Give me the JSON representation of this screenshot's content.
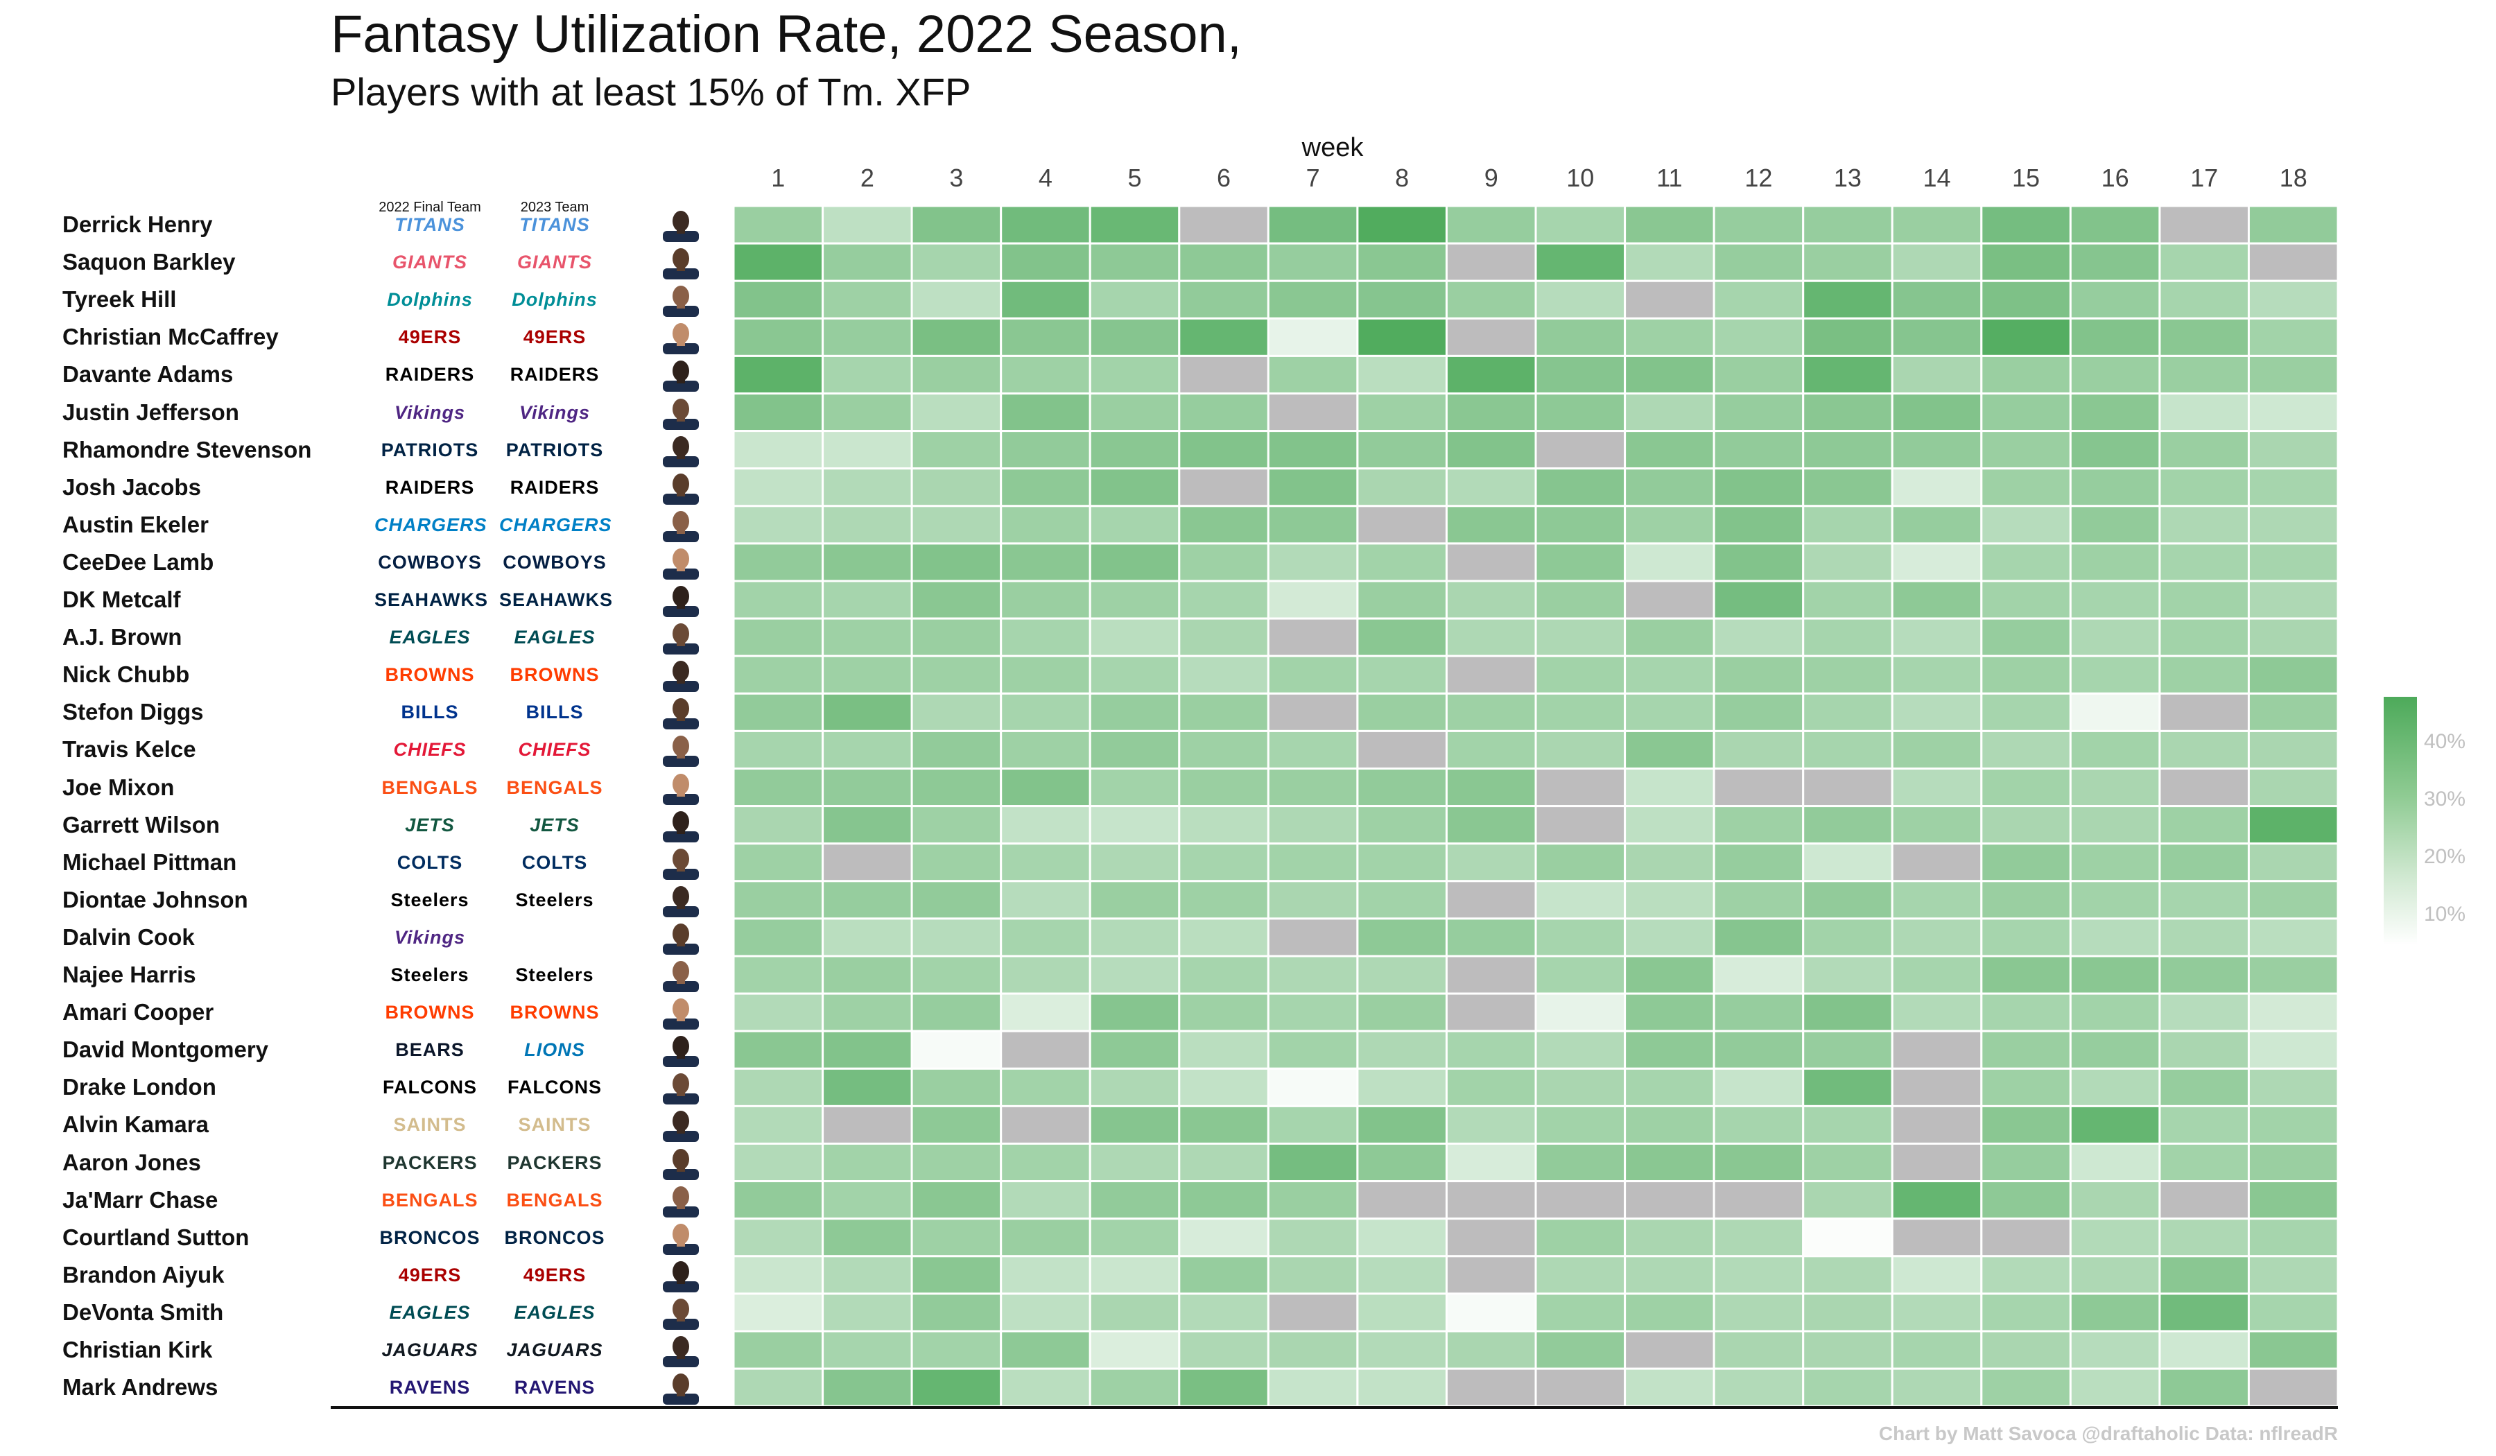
{
  "title": "Fantasy Utilization Rate,  2022 Season,",
  "subtitle": "Players with at least 15% of Tm. XFP",
  "week_axis_label": "week",
  "column_headers": {
    "team_2022": "2022 Final Team",
    "team_2023": "2023 Team"
  },
  "caption": "Chart by Matt Savoca    @draftaholic    Data: nflreadR",
  "legend": {
    "labels": [
      "40%",
      "30%",
      "20%",
      "10%"
    ],
    "scale_max": 46,
    "scale_min": 2
  },
  "colors": {
    "high": "#4daa5a",
    "low": "#ffffff",
    "missing": "#bdbcbd"
  },
  "chart_data": {
    "type": "heatmap",
    "title": "Fantasy Utilization Rate,  2022 Season,",
    "subtitle": "Players with at least 15% of Tm. XFP",
    "xlabel": "week",
    "x": [
      1,
      2,
      3,
      4,
      5,
      6,
      7,
      8,
      9,
      10,
      11,
      12,
      13,
      14,
      15,
      16,
      17,
      18
    ],
    "value_unit": "share of team expected fantasy points (%)",
    "rows": [
      {
        "player": "Derrick Henry",
        "team_2022": "TITANS",
        "team_2023": "TITANS",
        "values": [
          27,
          18,
          33,
          37,
          39,
          null,
          36,
          45,
          28,
          24,
          31,
          28,
          28,
          27,
          36,
          33,
          null,
          29
        ]
      },
      {
        "player": "Saquon Barkley",
        "team_2022": "GIANTS",
        "team_2023": "GIANTS",
        "values": [
          42,
          28,
          24,
          33,
          30,
          30,
          28,
          31,
          null,
          40,
          21,
          28,
          27,
          22,
          35,
          32,
          24,
          null
        ]
      },
      {
        "player": "Tyreek Hill",
        "team_2022": "Dolphins",
        "team_2023": "Dolphins",
        "values": [
          33,
          26,
          18,
          37,
          24,
          29,
          31,
          32,
          27,
          20,
          null,
          24,
          40,
          32,
          34,
          28,
          24,
          20
        ]
      },
      {
        "player": "Christian McCaffrey",
        "team_2022": "49ERS",
        "team_2023": "49ERS",
        "values": [
          31,
          28,
          35,
          31,
          32,
          40,
          8,
          45,
          null,
          29,
          26,
          24,
          35,
          32,
          44,
          33,
          31,
          25
        ]
      },
      {
        "player": "Davante Adams",
        "team_2022": "RAIDERS",
        "team_2023": "RAIDERS",
        "values": [
          42,
          24,
          27,
          26,
          25,
          null,
          26,
          19,
          42,
          32,
          33,
          27,
          40,
          23,
          27,
          27,
          27,
          27
        ]
      },
      {
        "player": "Justin Jefferson",
        "team_2022": "Vikings",
        "team_2023": "Vikings",
        "values": [
          33,
          27,
          19,
          33,
          27,
          28,
          null,
          26,
          31,
          30,
          22,
          28,
          31,
          33,
          28,
          31,
          16,
          14
        ]
      },
      {
        "player": "Rhamondre Stevenson",
        "team_2022": "PATRIOTS",
        "team_2023": "PATRIOTS",
        "values": [
          15,
          15,
          26,
          29,
          31,
          33,
          33,
          29,
          33,
          null,
          31,
          29,
          30,
          29,
          27,
          32,
          27,
          23
        ]
      },
      {
        "player": "Josh Jacobs",
        "team_2022": "RAIDERS",
        "team_2023": "RAIDERS",
        "values": [
          17,
          21,
          23,
          30,
          33,
          null,
          33,
          23,
          21,
          32,
          29,
          33,
          31,
          12,
          26,
          28,
          25,
          24
        ]
      },
      {
        "player": "Austin Ekeler",
        "team_2022": "CHARGERS",
        "team_2023": "CHARGERS",
        "values": [
          20,
          22,
          22,
          26,
          24,
          31,
          30,
          null,
          31,
          30,
          26,
          33,
          24,
          28,
          20,
          29,
          22,
          22
        ]
      },
      {
        "player": "CeeDee Lamb",
        "team_2022": "COWBOYS",
        "team_2023": "COWBOYS",
        "values": [
          29,
          31,
          33,
          31,
          33,
          26,
          21,
          25,
          null,
          30,
          14,
          33,
          22,
          12,
          24,
          26,
          24,
          24
        ]
      },
      {
        "player": "DK Metcalf",
        "team_2022": "SEAHAWKS",
        "team_2023": "SEAHAWKS",
        "values": [
          25,
          24,
          31,
          27,
          26,
          24,
          13,
          27,
          23,
          27,
          null,
          36,
          25,
          30,
          25,
          24,
          25,
          22
        ]
      },
      {
        "player": "A.J. Brown",
        "team_2022": "EAGLES",
        "team_2023": "EAGLES",
        "values": [
          27,
          26,
          27,
          24,
          19,
          23,
          null,
          31,
          22,
          22,
          27,
          20,
          24,
          20,
          28,
          22,
          25,
          23
        ]
      },
      {
        "player": "Nick Chubb",
        "team_2022": "BROWNS",
        "team_2023": "BROWNS",
        "values": [
          26,
          26,
          26,
          26,
          24,
          20,
          25,
          24,
          null,
          25,
          24,
          27,
          26,
          24,
          26,
          24,
          26,
          30
        ]
      },
      {
        "player": "Stefon Diggs",
        "team_2022": "BILLS",
        "team_2023": "BILLS",
        "values": [
          29,
          35,
          22,
          24,
          28,
          27,
          null,
          27,
          26,
          25,
          24,
          28,
          24,
          20,
          24,
          6,
          null,
          27
        ]
      },
      {
        "player": "Travis Kelce",
        "team_2022": "CHIEFS",
        "team_2023": "CHIEFS",
        "values": [
          24,
          24,
          29,
          26,
          29,
          26,
          24,
          null,
          25,
          23,
          31,
          23,
          24,
          26,
          22,
          25,
          23,
          23
        ]
      },
      {
        "player": "Joe Mixon",
        "team_2022": "BENGALS",
        "team_2023": "BENGALS",
        "values": [
          29,
          29,
          30,
          33,
          25,
          27,
          27,
          29,
          31,
          null,
          16,
          null,
          null,
          20,
          25,
          23,
          null,
          23
        ]
      },
      {
        "player": "Garrett Wilson",
        "team_2022": "JETS",
        "team_2023": "JETS",
        "values": [
          23,
          32,
          26,
          17,
          16,
          19,
          22,
          26,
          31,
          null,
          18,
          26,
          29,
          26,
          23,
          23,
          26,
          42
        ]
      },
      {
        "player": "Michael Pittman",
        "team_2022": "COLTS",
        "team_2023": "COLTS",
        "values": [
          26,
          null,
          26,
          24,
          22,
          24,
          25,
          25,
          22,
          27,
          23,
          28,
          14,
          null,
          29,
          26,
          28,
          23
        ]
      },
      {
        "player": "Diontae Johnson",
        "team_2022": "Steelers",
        "team_2023": "Steelers",
        "values": [
          27,
          28,
          29,
          20,
          27,
          26,
          23,
          25,
          null,
          16,
          19,
          26,
          29,
          24,
          27,
          25,
          24,
          26
        ]
      },
      {
        "player": "Dalvin Cook",
        "team_2022": "Vikings",
        "team_2023": "",
        "values": [
          28,
          19,
          20,
          24,
          21,
          19,
          null,
          30,
          28,
          24,
          20,
          32,
          25,
          22,
          24,
          20,
          22,
          19
        ]
      },
      {
        "player": "Najee Harris",
        "team_2022": "Steelers",
        "team_2023": "Steelers",
        "values": [
          25,
          27,
          25,
          22,
          20,
          24,
          22,
          22,
          null,
          24,
          31,
          12,
          21,
          24,
          31,
          31,
          29,
          27
        ]
      },
      {
        "player": "Amari Cooper",
        "team_2022": "BROWNS",
        "team_2023": "BROWNS",
        "values": [
          21,
          26,
          28,
          11,
          32,
          26,
          24,
          27,
          null,
          8,
          30,
          28,
          33,
          21,
          24,
          25,
          20,
          13
        ]
      },
      {
        "player": "David Montgomery",
        "team_2022": "BEARS",
        "team_2023": "LIONS",
        "values": [
          31,
          33,
          4,
          null,
          30,
          19,
          25,
          22,
          24,
          21,
          30,
          29,
          28,
          null,
          27,
          28,
          23,
          14
        ]
      },
      {
        "player": "Drake London",
        "team_2022": "FALCONS",
        "team_2023": "FALCONS",
        "values": [
          22,
          36,
          27,
          25,
          22,
          17,
          4,
          18,
          25,
          23,
          24,
          16,
          37,
          null,
          26,
          21,
          28,
          22
        ]
      },
      {
        "player": "Alvin Kamara",
        "team_2022": "SAINTS",
        "team_2023": "SAINTS",
        "values": [
          21,
          null,
          30,
          null,
          32,
          31,
          24,
          33,
          21,
          25,
          26,
          24,
          24,
          null,
          31,
          40,
          24,
          25
        ]
      },
      {
        "player": "Aaron Jones",
        "team_2022": "PACKERS",
        "team_2023": "PACKERS",
        "values": [
          21,
          25,
          26,
          25,
          22,
          22,
          36,
          30,
          12,
          29,
          31,
          31,
          26,
          null,
          28,
          14,
          25,
          27
        ]
      },
      {
        "player": "Ja'Marr Chase",
        "team_2022": "BENGALS",
        "team_2023": "BENGALS",
        "values": [
          29,
          25,
          31,
          21,
          29,
          30,
          27,
          null,
          null,
          null,
          null,
          null,
          23,
          40,
          30,
          23,
          null,
          31
        ]
      },
      {
        "player": "Courtland Sutton",
        "team_2022": "BRONCOS",
        "team_2023": "BRONCOS",
        "values": [
          21,
          30,
          26,
          27,
          25,
          12,
          22,
          16,
          null,
          26,
          23,
          22,
          3,
          null,
          null,
          21,
          22,
          24
        ]
      },
      {
        "player": "Brandon Aiyuk",
        "team_2022": "49ERS",
        "team_2023": "49ERS",
        "values": [
          15,
          21,
          31,
          17,
          15,
          28,
          23,
          20,
          null,
          22,
          22,
          21,
          22,
          14,
          21,
          22,
          31,
          22
        ]
      },
      {
        "player": "DeVonta Smith",
        "team_2022": "EAGLES",
        "team_2023": "EAGLES",
        "values": [
          11,
          21,
          29,
          18,
          23,
          21,
          null,
          19,
          4,
          25,
          26,
          22,
          23,
          21,
          24,
          30,
          37,
          24
        ]
      },
      {
        "player": "Christian Kirk",
        "team_2022": "JAGUARS",
        "team_2023": "JAGUARS",
        "values": [
          27,
          24,
          25,
          30,
          11,
          22,
          23,
          21,
          23,
          29,
          null,
          23,
          23,
          24,
          23,
          20,
          14,
          31
        ]
      },
      {
        "player": "Mark Andrews",
        "team_2022": "RAVENS",
        "team_2023": "RAVENS",
        "values": [
          22,
          32,
          40,
          19,
          26,
          35,
          16,
          17,
          null,
          null,
          17,
          21,
          24,
          22,
          26,
          19,
          30,
          null
        ]
      }
    ]
  }
}
